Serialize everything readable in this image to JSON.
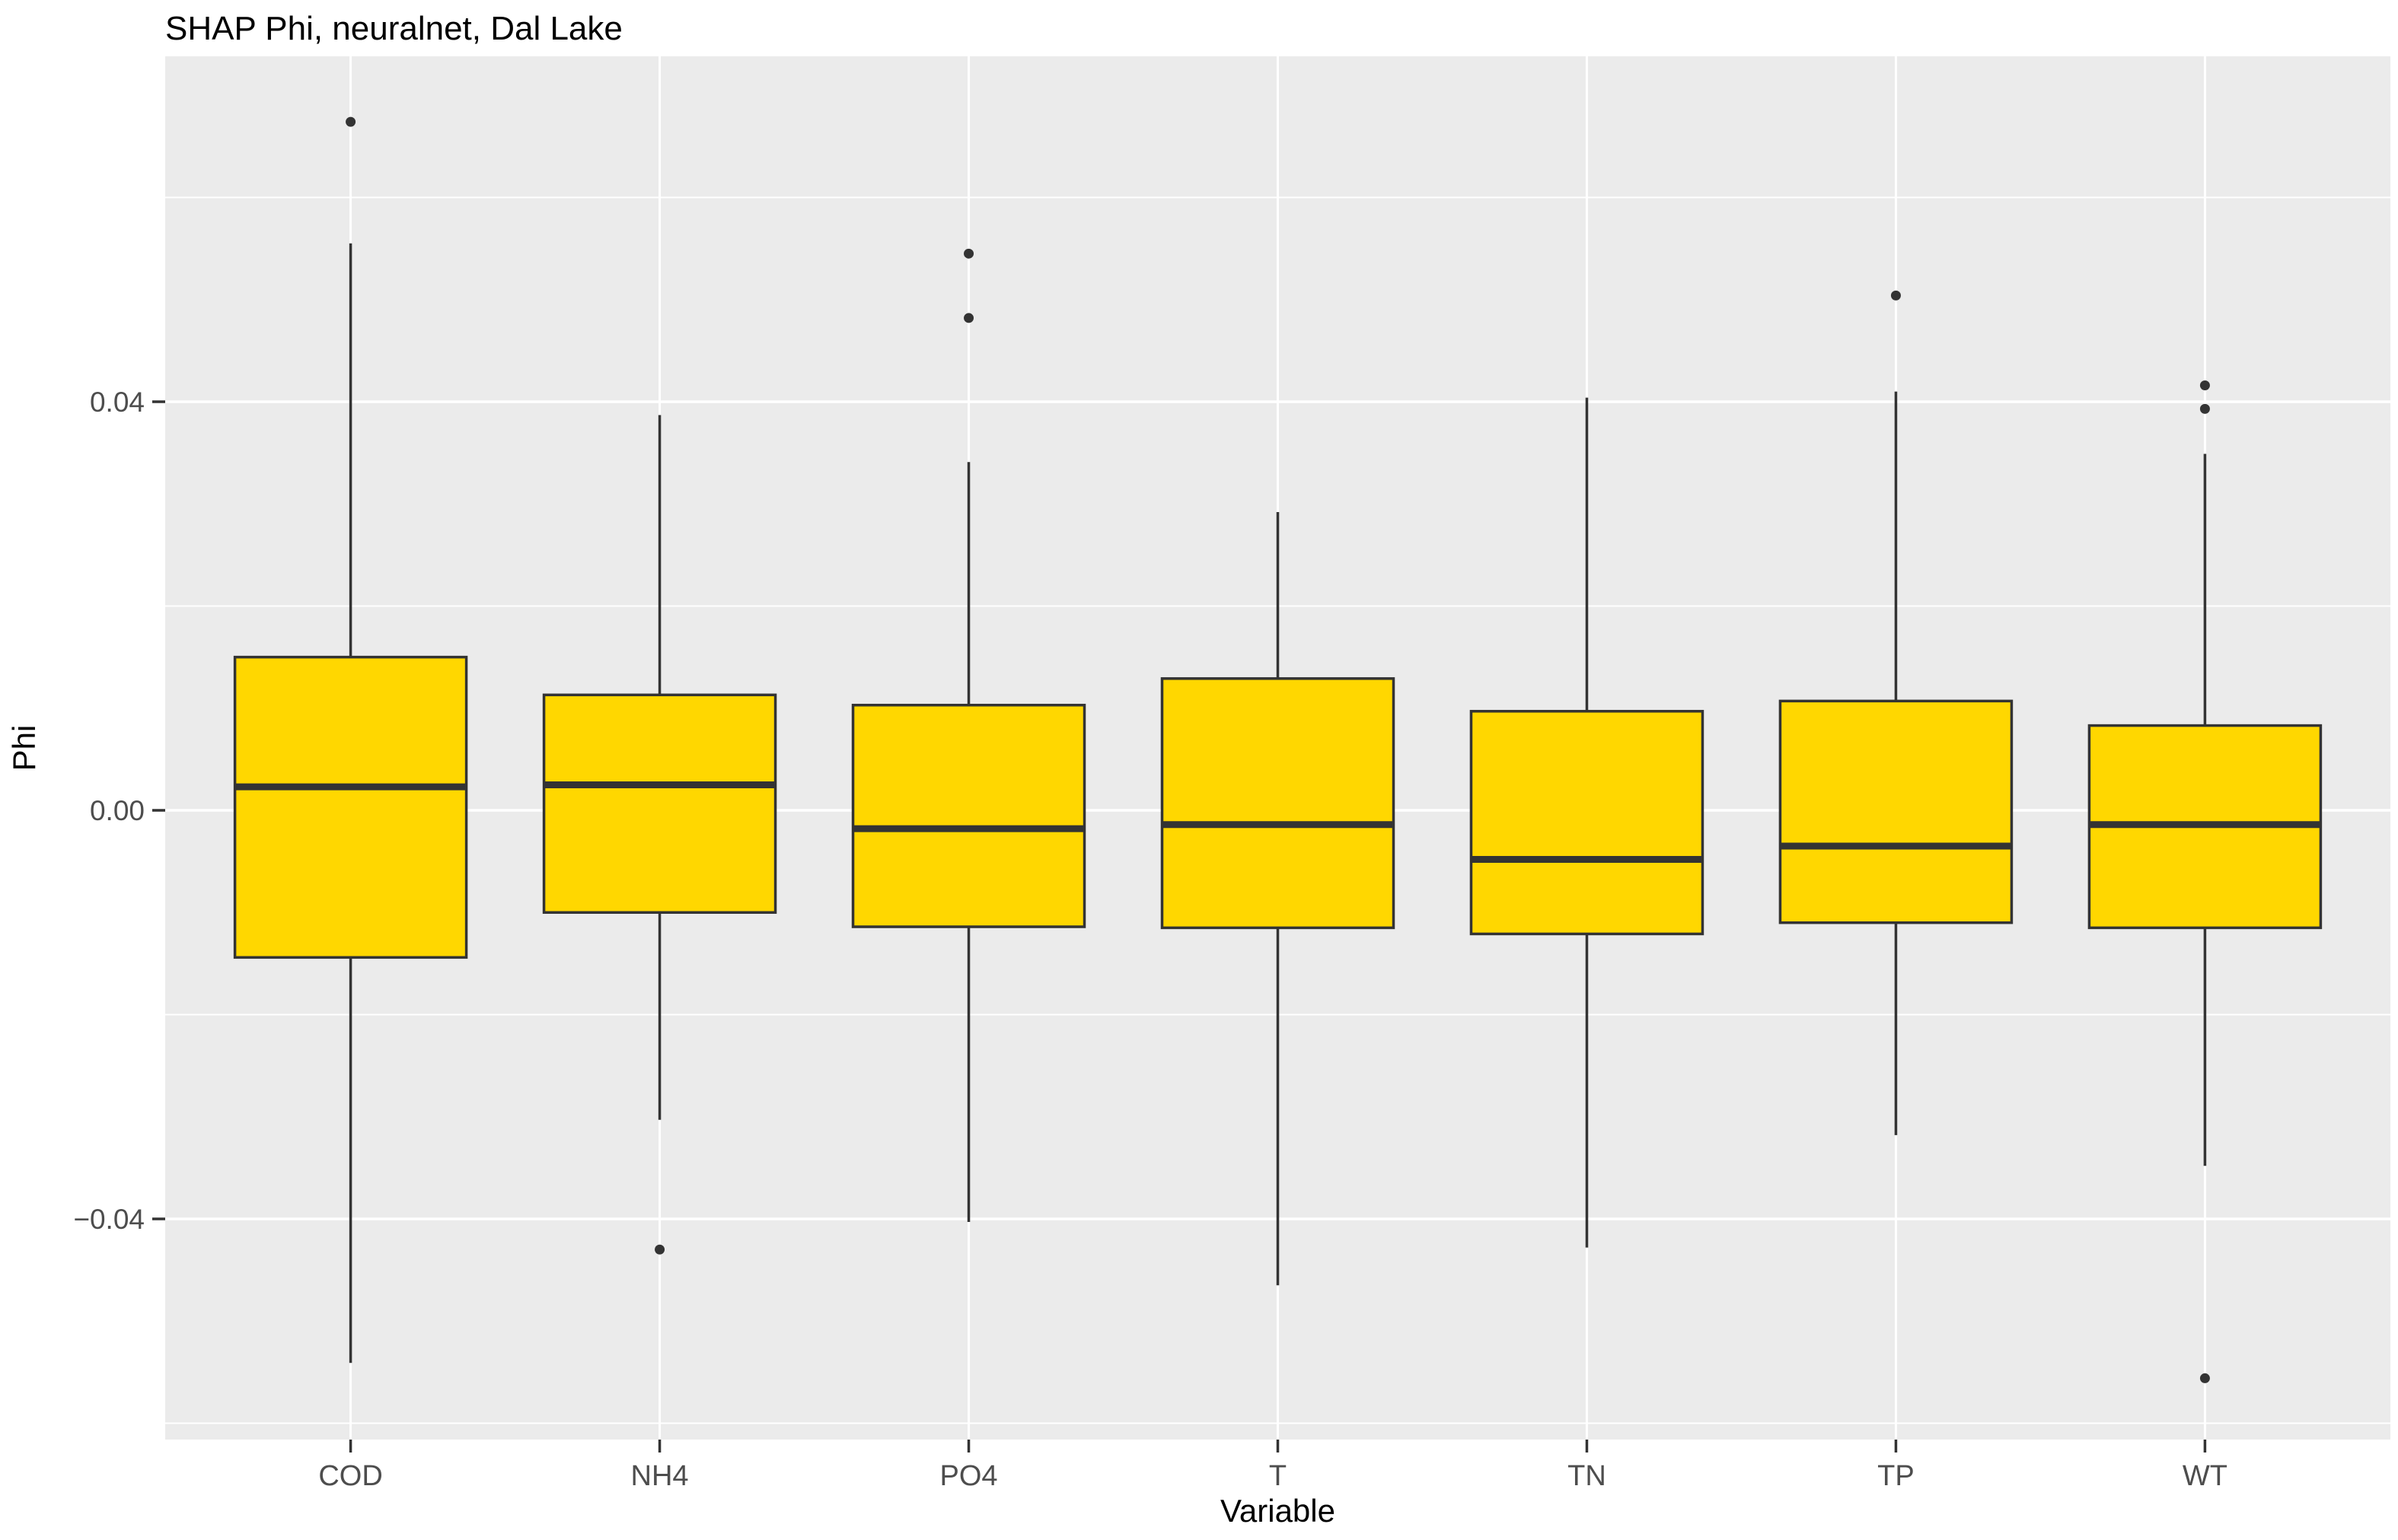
{
  "chart_data": {
    "type": "boxplot",
    "title": "SHAP Phi, neuralnet, Dal Lake",
    "xlabel": "Variable",
    "ylabel": "Phi",
    "legend": "none",
    "grid": "on",
    "panel_bg": "#EBEBEB",
    "grid_color": "#FFFFFF",
    "box_fill": "#FFD700",
    "box_line_color": "#333333",
    "tick_label_color": "#4D4D4D",
    "title_color": "#000000",
    "ylim": [
      -0.0616,
      0.074
    ],
    "y_axis": {
      "ticks": [
        {
          "label": "0.04",
          "value": 0.04
        },
        {
          "label": "0.00",
          "value": 0.0
        },
        {
          "label": "−0.04",
          "value": -0.04
        }
      ],
      "minor_ticks": [
        0.06,
        0.02,
        -0.02,
        -0.06
      ]
    },
    "categories": [
      "COD",
      "NH4",
      "PO4",
      "T",
      "TN",
      "TP",
      "WT"
    ],
    "series": [
      {
        "name": "COD",
        "whisker_low": -0.0541,
        "q1": -0.0144,
        "median": 0.0023,
        "q3": 0.015,
        "whisker_high": 0.0555,
        "outliers": [
          0.0674
        ]
      },
      {
        "name": "NH4",
        "whisker_low": -0.0303,
        "q1": -0.01,
        "median": 0.0025,
        "q3": 0.0113,
        "whisker_high": 0.0387,
        "outliers": [
          -0.043
        ]
      },
      {
        "name": "PO4",
        "whisker_low": -0.0403,
        "q1": -0.0114,
        "median": -0.0018,
        "q3": 0.0103,
        "whisker_high": 0.0341,
        "outliers": [
          0.0545,
          0.0482
        ]
      },
      {
        "name": "T",
        "whisker_low": -0.0465,
        "q1": -0.0115,
        "median": -0.0014,
        "q3": 0.0129,
        "whisker_high": 0.0292,
        "outliers": []
      },
      {
        "name": "TN",
        "whisker_low": -0.0428,
        "q1": -0.0121,
        "median": -0.0048,
        "q3": 0.0097,
        "whisker_high": 0.0404,
        "outliers": []
      },
      {
        "name": "TP",
        "whisker_low": -0.0318,
        "q1": -0.011,
        "median": -0.0035,
        "q3": 0.0107,
        "whisker_high": 0.041,
        "outliers": [
          0.0504
        ]
      },
      {
        "name": "WT",
        "whisker_low": -0.0348,
        "q1": -0.0115,
        "median": -0.0014,
        "q3": 0.0083,
        "whisker_high": 0.0349,
        "outliers": [
          0.0416,
          0.0393,
          -0.0556
        ]
      }
    ]
  }
}
